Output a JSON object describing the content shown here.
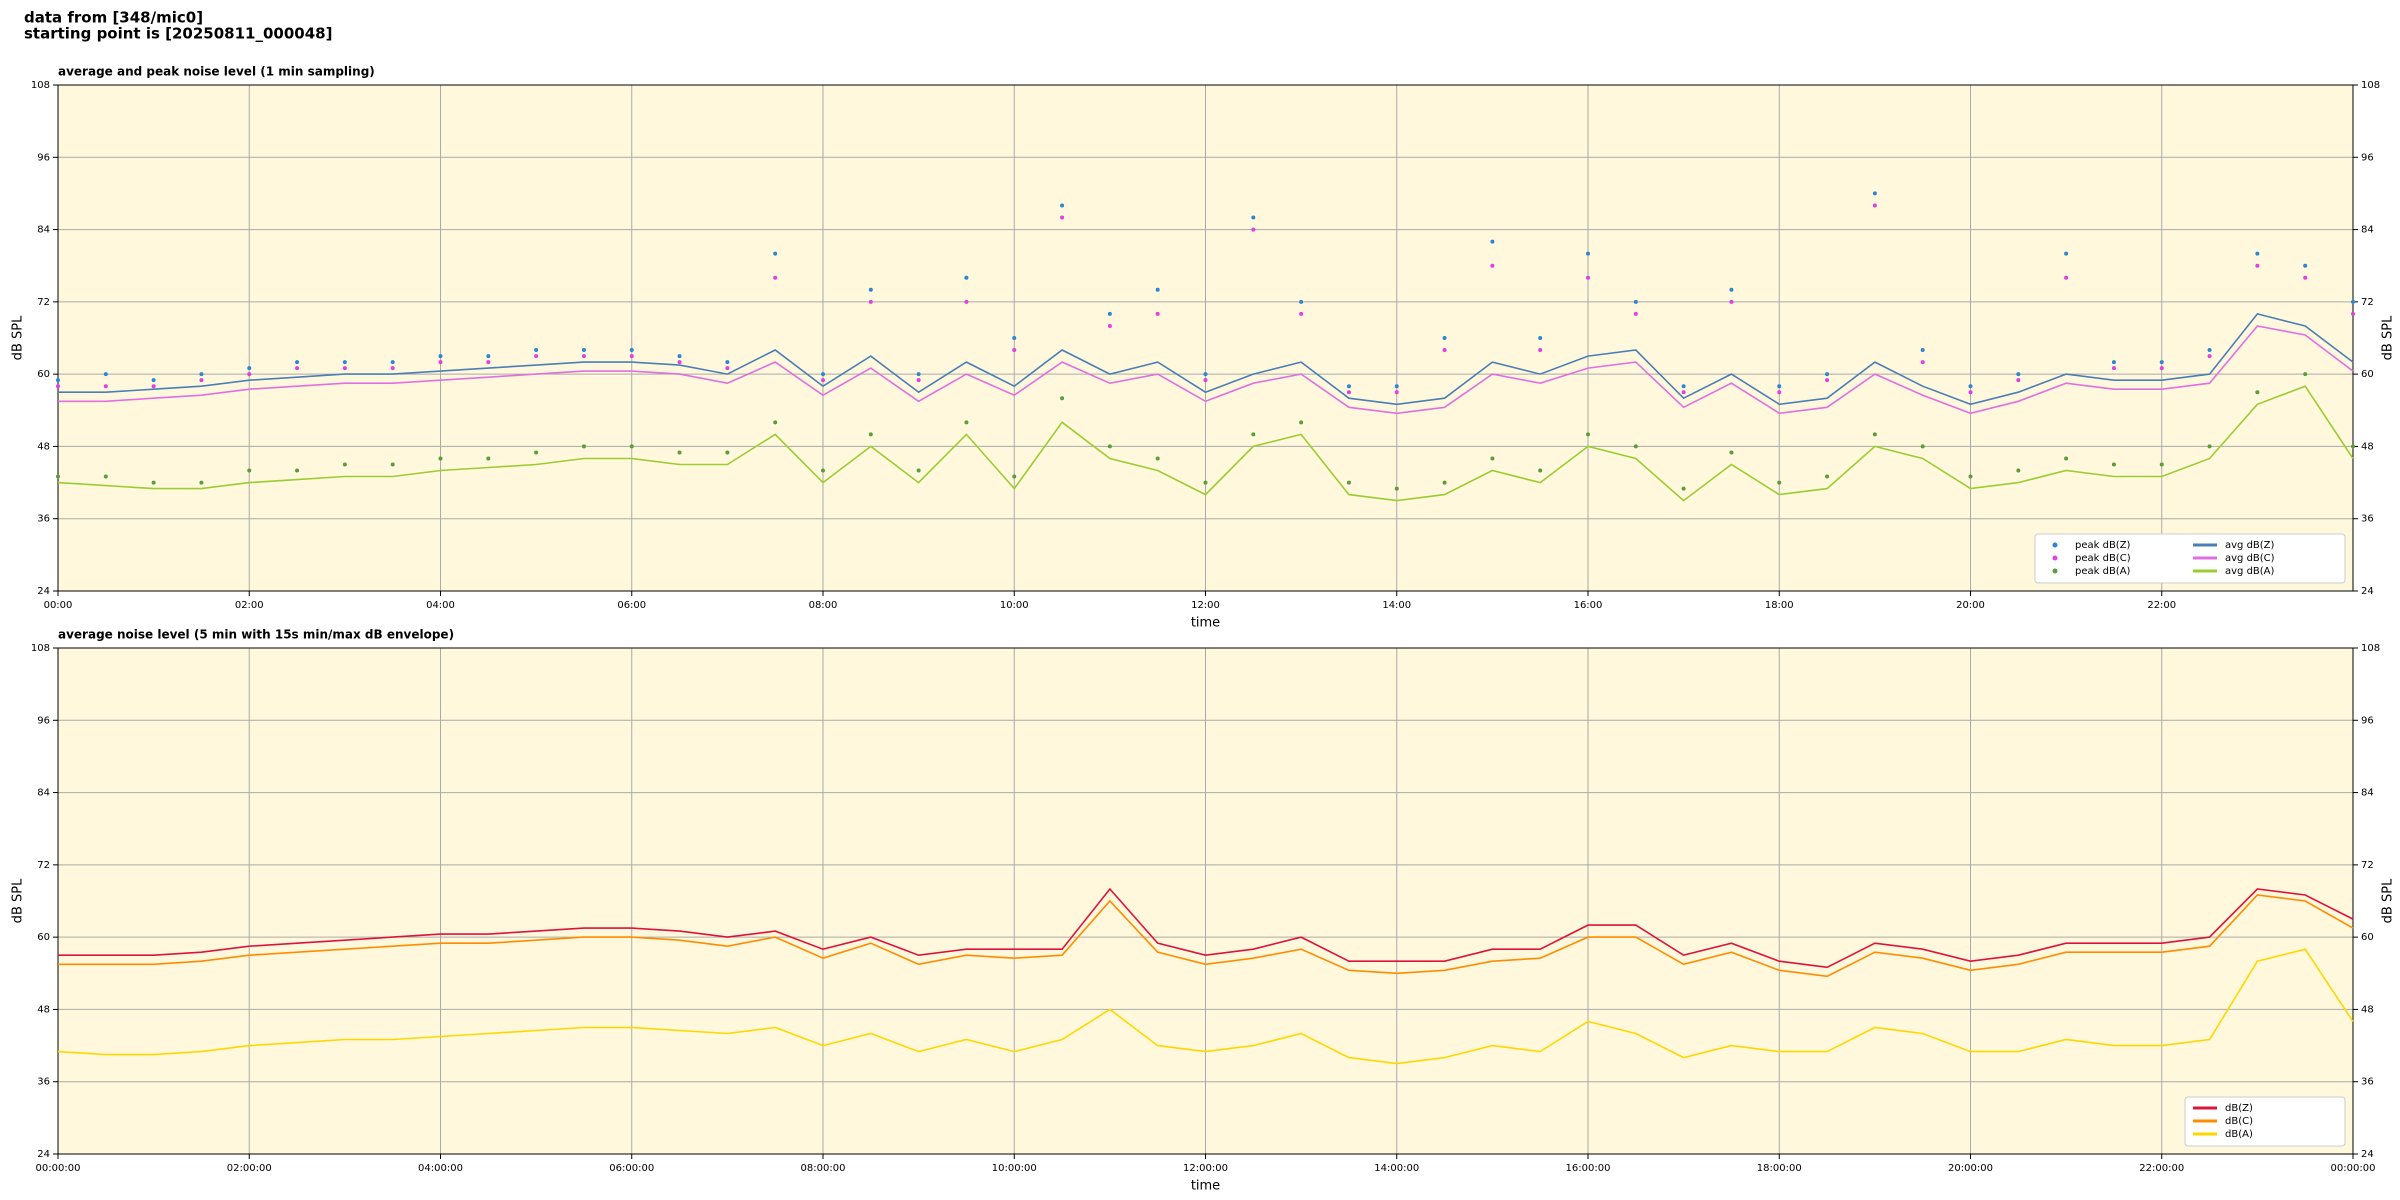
{
  "header": {
    "line1": "data from [348/mic0]",
    "line2": "starting point is [20250811_000048]"
  },
  "chart_data": [
    {
      "type": "line",
      "title": "average and peak noise level (1 min sampling)",
      "xlabel": "time",
      "ylabel": "dB SPL",
      "x": [
        0,
        0.5,
        1,
        1.5,
        2,
        2.5,
        3,
        3.5,
        4,
        4.5,
        5,
        5.5,
        6,
        6.5,
        7,
        7.5,
        8,
        8.5,
        9,
        9.5,
        10,
        10.5,
        11,
        11.5,
        12,
        12.5,
        13,
        13.5,
        14,
        14.5,
        15,
        15.5,
        16,
        16.5,
        17,
        17.5,
        18,
        18.5,
        19,
        19.5,
        20,
        20.5,
        21,
        21.5,
        22,
        22.5,
        23,
        23.5,
        24
      ],
      "xlim": [
        0,
        24
      ],
      "xticks": [
        {
          "value": 0,
          "label": "00:00"
        },
        {
          "value": 2,
          "label": "02:00"
        },
        {
          "value": 4,
          "label": "04:00"
        },
        {
          "value": 6,
          "label": "06:00"
        },
        {
          "value": 8,
          "label": "08:00"
        },
        {
          "value": 10,
          "label": "10:00"
        },
        {
          "value": 12,
          "label": "12:00"
        },
        {
          "value": 14,
          "label": "14:00"
        },
        {
          "value": 16,
          "label": "16:00"
        },
        {
          "value": 18,
          "label": "18:00"
        },
        {
          "value": 20,
          "label": "20:00"
        },
        {
          "value": 22,
          "label": "22:00"
        }
      ],
      "ylim": [
        24,
        108
      ],
      "yticks": [
        24,
        36,
        48,
        60,
        72,
        84,
        96,
        108
      ],
      "grid": true,
      "legend": "lower-right",
      "legend_columns": 2,
      "series": [
        {
          "name": "peak dB(Z)",
          "color": "#2f86d0",
          "style": "marker",
          "values": [
            59,
            60,
            59,
            60,
            61,
            62,
            62,
            62,
            63,
            63,
            64,
            64,
            64,
            63,
            62,
            80,
            60,
            74,
            60,
            76,
            66,
            88,
            70,
            74,
            60,
            86,
            72,
            58,
            58,
            66,
            82,
            66,
            80,
            72,
            58,
            74,
            58,
            60,
            90,
            64,
            58,
            60,
            80,
            62,
            62,
            64,
            80,
            78,
            72
          ]
        },
        {
          "name": "peak dB(C)",
          "color": "#e040e0",
          "style": "marker",
          "values": [
            58,
            58,
            58,
            59,
            60,
            61,
            61,
            61,
            62,
            62,
            63,
            63,
            63,
            62,
            61,
            76,
            59,
            72,
            59,
            72,
            64,
            86,
            68,
            70,
            59,
            84,
            70,
            57,
            57,
            64,
            78,
            64,
            76,
            70,
            57,
            72,
            57,
            59,
            88,
            62,
            57,
            59,
            76,
            61,
            61,
            63,
            78,
            76,
            70
          ]
        },
        {
          "name": "peak dB(A)",
          "color": "#5a9e3c",
          "style": "marker",
          "values": [
            43,
            43,
            42,
            42,
            44,
            44,
            45,
            45,
            46,
            46,
            47,
            48,
            48,
            47,
            47,
            52,
            44,
            50,
            44,
            52,
            43,
            56,
            48,
            46,
            42,
            50,
            52,
            42,
            41,
            42,
            46,
            44,
            50,
            48,
            41,
            47,
            42,
            43,
            50,
            48,
            43,
            44,
            46,
            45,
            45,
            48,
            57,
            60,
            48
          ]
        },
        {
          "name": "avg dB(Z)",
          "color": "#4a7fb5",
          "style": "line",
          "values": [
            57,
            57,
            57.5,
            58,
            59,
            59.5,
            60,
            60,
            60.5,
            61,
            61.5,
            62,
            62,
            61.5,
            60,
            64,
            58,
            63,
            57,
            62,
            58,
            64,
            60,
            62,
            57,
            60,
            62,
            56,
            55,
            56,
            62,
            60,
            63,
            64,
            56,
            60,
            55,
            56,
            62,
            58,
            55,
            57,
            60,
            59,
            59,
            60,
            70,
            68,
            62
          ]
        },
        {
          "name": "avg dB(C)",
          "color": "#e070e0",
          "style": "line",
          "values": [
            55.5,
            55.5,
            56,
            56.5,
            57.5,
            58,
            58.5,
            58.5,
            59,
            59.5,
            60,
            60.5,
            60.5,
            60,
            58.5,
            62,
            56.5,
            61,
            55.5,
            60,
            56.5,
            62,
            58.5,
            60,
            55.5,
            58.5,
            60,
            54.5,
            53.5,
            54.5,
            60,
            58.5,
            61,
            62,
            54.5,
            58.5,
            53.5,
            54.5,
            60,
            56.5,
            53.5,
            55.5,
            58.5,
            57.5,
            57.5,
            58.5,
            68,
            66.5,
            60.5
          ]
        },
        {
          "name": "avg dB(A)",
          "color": "#9acd32",
          "style": "line",
          "values": [
            42,
            41.5,
            41,
            41,
            42,
            42.5,
            43,
            43,
            44,
            44.5,
            45,
            46,
            46,
            45,
            45,
            50,
            42,
            48,
            42,
            50,
            41,
            52,
            46,
            44,
            40,
            48,
            50,
            40,
            39,
            40,
            44,
            42,
            48,
            46,
            39,
            45,
            40,
            41,
            48,
            46,
            41,
            42,
            44,
            43,
            43,
            46,
            55,
            58,
            46
          ]
        }
      ]
    },
    {
      "type": "line",
      "title": "average noise level (5 min with 15s min/max dB envelope)",
      "xlabel": "time",
      "ylabel": "dB SPL",
      "x": [
        0,
        0.5,
        1,
        1.5,
        2,
        2.5,
        3,
        3.5,
        4,
        4.5,
        5,
        5.5,
        6,
        6.5,
        7,
        7.5,
        8,
        8.5,
        9,
        9.5,
        10,
        10.5,
        11,
        11.5,
        12,
        12.5,
        13,
        13.5,
        14,
        14.5,
        15,
        15.5,
        16,
        16.5,
        17,
        17.5,
        18,
        18.5,
        19,
        19.5,
        20,
        20.5,
        21,
        21.5,
        22,
        22.5,
        23,
        23.5,
        24
      ],
      "xlim": [
        0,
        24
      ],
      "xticks": [
        {
          "value": 0,
          "label": "00:00:00"
        },
        {
          "value": 2,
          "label": "02:00:00"
        },
        {
          "value": 4,
          "label": "04:00:00"
        },
        {
          "value": 6,
          "label": "06:00:00"
        },
        {
          "value": 8,
          "label": "08:00:00"
        },
        {
          "value": 10,
          "label": "10:00:00"
        },
        {
          "value": 12,
          "label": "12:00:00"
        },
        {
          "value": 14,
          "label": "14:00:00"
        },
        {
          "value": 16,
          "label": "16:00:00"
        },
        {
          "value": 18,
          "label": "18:00:00"
        },
        {
          "value": 20,
          "label": "20:00:00"
        },
        {
          "value": 22,
          "label": "22:00:00"
        },
        {
          "value": 24,
          "label": "00:00:00"
        }
      ],
      "ylim": [
        24,
        108
      ],
      "yticks": [
        24,
        36,
        48,
        60,
        72,
        84,
        96,
        108
      ],
      "grid": true,
      "legend": "lower-right",
      "legend_columns": 1,
      "series": [
        {
          "name": "dB(Z)",
          "color": "#dc143c",
          "style": "line",
          "values": [
            57,
            57,
            57,
            57.5,
            58.5,
            59,
            59.5,
            60,
            60.5,
            60.5,
            61,
            61.5,
            61.5,
            61,
            60,
            61,
            58,
            60,
            57,
            58,
            58,
            58,
            68,
            59,
            57,
            58,
            60,
            56,
            56,
            56,
            58,
            58,
            62,
            62,
            57,
            59,
            56,
            55,
            59,
            58,
            56,
            57,
            59,
            59,
            59,
            60,
            68,
            67,
            63
          ]
        },
        {
          "name": "dB(C)",
          "color": "#ff8c00",
          "style": "line",
          "values": [
            55.5,
            55.5,
            55.5,
            56,
            57,
            57.5,
            58,
            58.5,
            59,
            59,
            59.5,
            60,
            60,
            59.5,
            58.5,
            60,
            56.5,
            59,
            55.5,
            57,
            56.5,
            57,
            66,
            57.5,
            55.5,
            56.5,
            58,
            54.5,
            54,
            54.5,
            56,
            56.5,
            60,
            60,
            55.5,
            57.5,
            54.5,
            53.5,
            57.5,
            56.5,
            54.5,
            55.5,
            57.5,
            57.5,
            57.5,
            58.5,
            67,
            66,
            61.5
          ]
        },
        {
          "name": "dB(A)",
          "color": "#ffd700",
          "style": "line",
          "values": [
            41,
            40.5,
            40.5,
            41,
            42,
            42.5,
            43,
            43,
            43.5,
            44,
            44.5,
            45,
            45,
            44.5,
            44,
            45,
            42,
            44,
            41,
            43,
            41,
            43,
            48,
            42,
            41,
            42,
            44,
            40,
            39,
            40,
            42,
            41,
            46,
            44,
            40,
            42,
            41,
            41,
            45,
            44,
            41,
            41,
            43,
            42,
            42,
            43,
            56,
            58,
            46
          ]
        }
      ]
    }
  ]
}
